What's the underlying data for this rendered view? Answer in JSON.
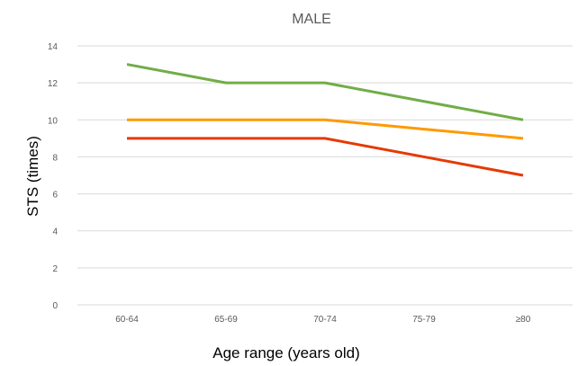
{
  "chart_data": {
    "type": "line",
    "title": "MALE",
    "xlabel": "Age range (years old)",
    "ylabel": "STS (times)",
    "categories": [
      "60-64",
      "65-69",
      "70-74",
      "75-79",
      "≥80"
    ],
    "ylim": [
      0,
      14
    ],
    "yticks": [
      0,
      2,
      4,
      6,
      8,
      10,
      12,
      14
    ],
    "grid": true,
    "legend": "none",
    "series": [
      {
        "color": "#70ad47",
        "values": [
          13,
          12,
          12,
          11,
          10
        ]
      },
      {
        "color": "#ff9900",
        "values": [
          10,
          10,
          10,
          9.5,
          9
        ]
      },
      {
        "color": "#e63900",
        "values": [
          9,
          9,
          9,
          8,
          7
        ]
      }
    ]
  }
}
